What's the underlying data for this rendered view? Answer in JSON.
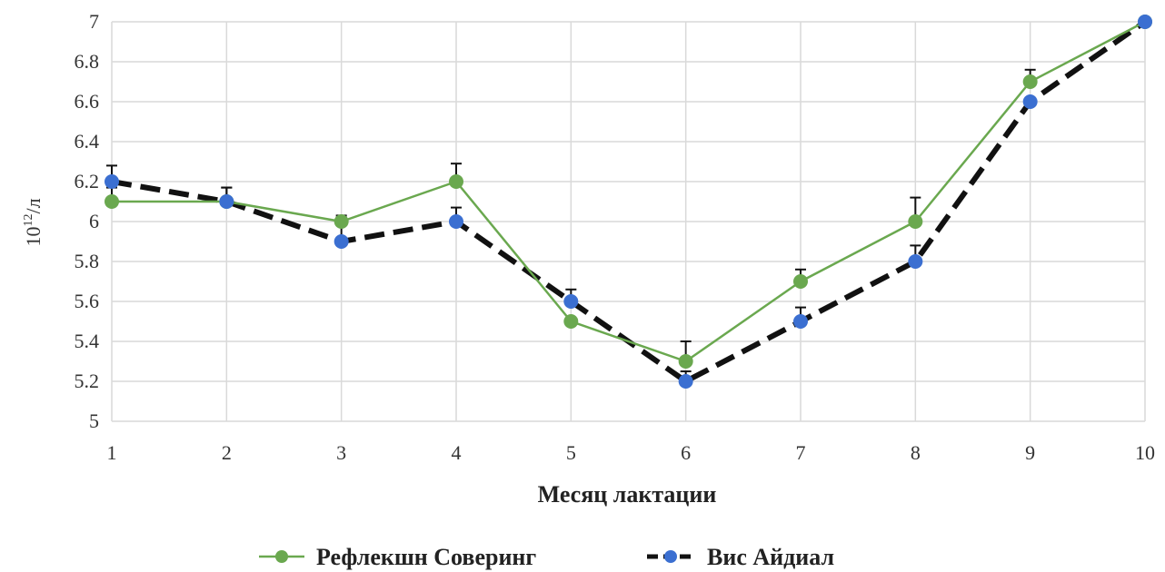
{
  "chart_data": {
    "type": "line",
    "title": "",
    "xlabel": "Месяц лактации",
    "ylabel_base": "10",
    "ylabel_exp": "12",
    "ylabel_unit": "/л",
    "x": [
      1,
      2,
      3,
      4,
      5,
      6,
      7,
      8,
      9,
      10
    ],
    "x_tick_labels": [
      "1",
      "2",
      "3",
      "4",
      "5",
      "6",
      "7",
      "8",
      "9",
      "10"
    ],
    "y_tick_labels": [
      "5",
      "5.2",
      "5.4",
      "5.6",
      "5.8",
      "6",
      "6.2",
      "6.4",
      "6.6",
      "6.8",
      "7"
    ],
    "xlim": [
      1,
      10
    ],
    "ylim": [
      5,
      7
    ],
    "y_step": 0.2,
    "grid": true,
    "legend_position": "bottom",
    "series": [
      {
        "name": "Рефлекшн Соверинг",
        "color": "#6aa84f",
        "line_style": "solid",
        "values": [
          6.1,
          6.1,
          6.0,
          6.2,
          5.5,
          5.3,
          5.7,
          6.0,
          6.7,
          7.0
        ],
        "error_plus": [
          0.07,
          0.07,
          0.03,
          0.09,
          0.0,
          0.1,
          0.06,
          0.12,
          0.06,
          0.0
        ]
      },
      {
        "name": "Вис Айдиал",
        "color": "#3b6fd1",
        "line_color": "#111111",
        "line_style": "dashed",
        "values": [
          6.2,
          6.1,
          5.9,
          6.0,
          5.6,
          5.2,
          5.5,
          5.8,
          6.6,
          7.0
        ],
        "error_plus": [
          0.08,
          0.07,
          0.12,
          0.07,
          0.06,
          0.05,
          0.07,
          0.08,
          0.0,
          0.0
        ]
      }
    ]
  }
}
